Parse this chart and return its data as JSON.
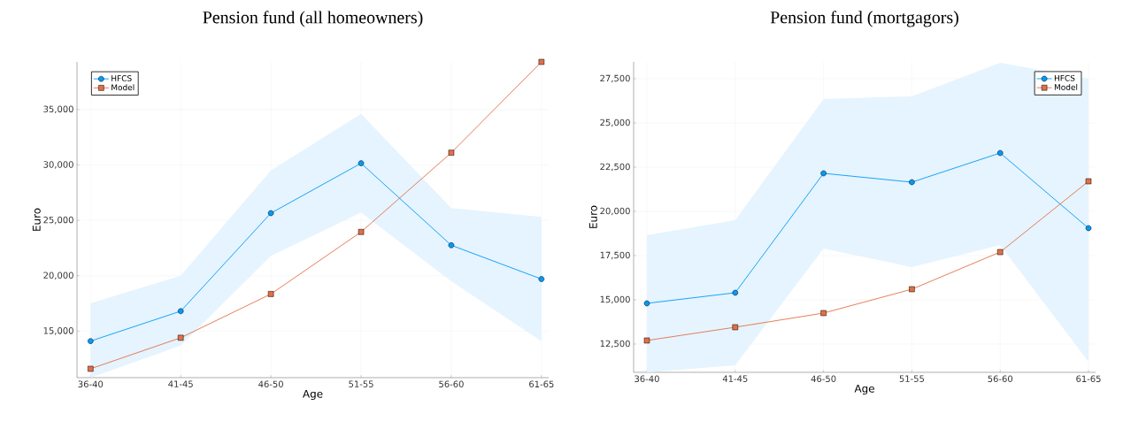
{
  "chart_data": [
    {
      "type": "line",
      "title": "Pension fund (all homeowners)",
      "xlabel": "Age",
      "ylabel": "Euro",
      "categories": [
        "36-40",
        "41-45",
        "46-50",
        "51-55",
        "56-60",
        "61-65"
      ],
      "series": [
        {
          "name": "HFCS",
          "color": "#009afa",
          "marker": "circle",
          "values": [
            14100,
            16800,
            25650,
            30150,
            22750,
            19700
          ],
          "lower": [
            10800,
            13700,
            21800,
            25700,
            19500,
            14100
          ],
          "upper": [
            17500,
            20000,
            29500,
            34600,
            26100,
            25300
          ]
        },
        {
          "name": "Model",
          "color": "#e36f47",
          "marker": "square",
          "values": [
            11600,
            14400,
            18350,
            23950,
            31100,
            39300
          ]
        }
      ],
      "ylim": [
        10800,
        39300
      ],
      "yticks": [
        {
          "value": 15000,
          "label": "15,000"
        },
        {
          "value": 20000,
          "label": "20,000"
        },
        {
          "value": 25000,
          "label": "25,000"
        },
        {
          "value": 30000,
          "label": "30,000"
        },
        {
          "value": 35000,
          "label": "35,000"
        }
      ],
      "grid": true,
      "legend": "top left"
    },
    {
      "type": "line",
      "title": "Pension fund (mortgagors)",
      "xlabel": "Age",
      "ylabel": "Euro",
      "categories": [
        "36-40",
        "41-45",
        "46-50",
        "51-55",
        "56-60",
        "61-65"
      ],
      "series": [
        {
          "name": "HFCS",
          "color": "#009afa",
          "marker": "circle",
          "values": [
            14800,
            15400,
            22150,
            21650,
            23300,
            19050
          ],
          "lower": [
            10900,
            11300,
            17900,
            16850,
            18100,
            11500
          ],
          "upper": [
            18650,
            19500,
            26350,
            26500,
            28400,
            27500
          ]
        },
        {
          "name": "Model",
          "color": "#e36f47",
          "marker": "square",
          "values": [
            12700,
            13450,
            14250,
            15600,
            17700,
            21700
          ]
        }
      ],
      "ylim": [
        10900,
        28450
      ],
      "yticks": [
        {
          "value": 12500,
          "label": "12,500"
        },
        {
          "value": 15000,
          "label": "15,000"
        },
        {
          "value": 17500,
          "label": "17,500"
        },
        {
          "value": 20000,
          "label": "20,000"
        },
        {
          "value": 22500,
          "label": "22,500"
        },
        {
          "value": 25000,
          "label": "25,000"
        },
        {
          "value": 27500,
          "label": "27,500"
        }
      ],
      "grid": true,
      "legend": "top right"
    }
  ]
}
